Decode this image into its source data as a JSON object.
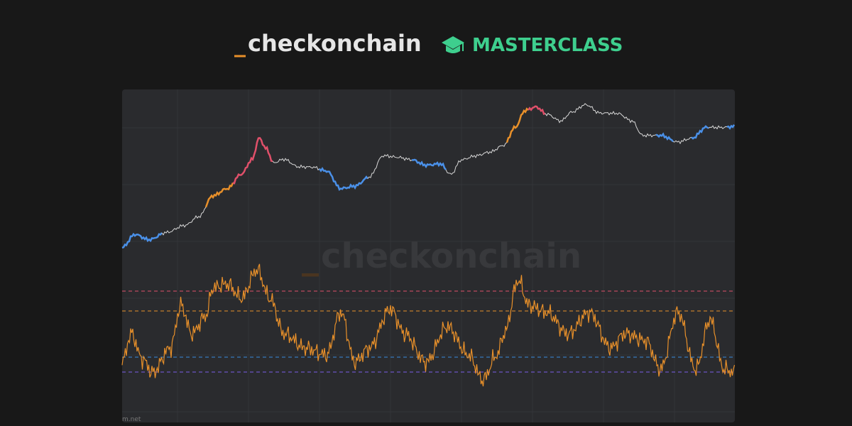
{
  "header": {
    "brand_prefix": "_",
    "brand": "checkonchain",
    "badge": "MASTERCLASS"
  },
  "chart": {
    "watermark_prefix": "_",
    "watermark": "checkonchain",
    "source": "m.net"
  }
}
